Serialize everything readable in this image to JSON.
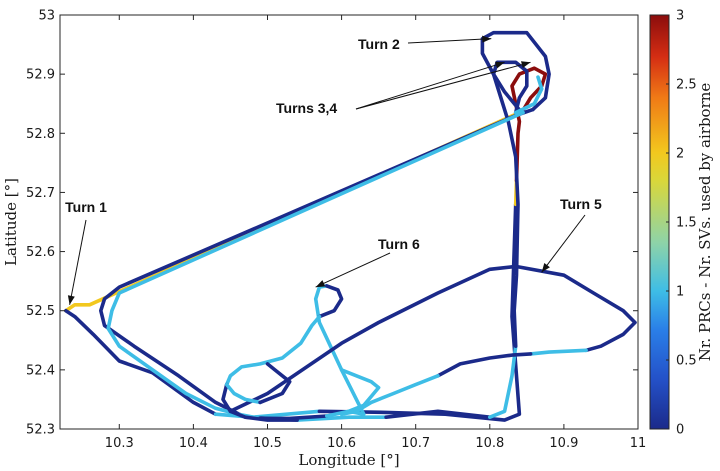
{
  "chart_data": {
    "type": "line",
    "xlabel": "Longitude [°]",
    "ylabel": "Latitude [°]",
    "colorbar_label": "Nr. PRCs - Nr. SVs. used by airborne",
    "xlim": [
      10.22,
      11.0
    ],
    "ylim": [
      52.3,
      53.0
    ],
    "x_ticks": [
      "10.3",
      "10.4",
      "10.5",
      "10.6",
      "10.7",
      "10.8",
      "10.9",
      "11"
    ],
    "y_ticks": [
      "52.3",
      "52.4",
      "52.5",
      "52.6",
      "52.7",
      "52.8",
      "52.9",
      "53"
    ],
    "colorbar_ticks": [
      "0",
      "0.5",
      "1",
      "1.5",
      "2",
      "2.5",
      "3"
    ],
    "colorbar_range": [
      0,
      3
    ],
    "colors": {
      "value_0": "#1b2a8a",
      "value_1": "#3ebde6",
      "value_2": "#f2c81e",
      "value_3": "#8b0d0d"
    },
    "grid": false,
    "annotations": [
      {
        "text": "Turn 1",
        "target": [
          10.233,
          52.51
        ]
      },
      {
        "text": "Turn 2",
        "target": [
          10.802,
          52.96
        ]
      },
      {
        "text": "Turns 3,4",
        "target": [
          10.855,
          52.92
        ]
      },
      {
        "text": "Turn 5",
        "target": [
          10.87,
          52.565
        ]
      },
      {
        "text": "Turn 6",
        "target": [
          10.565,
          52.54
        ]
      }
    ],
    "segments": [
      {
        "value": 2,
        "points": [
          [
            10.84,
            52.835
          ],
          [
            10.26,
            52.51
          ],
          [
            10.24,
            52.51
          ],
          [
            10.228,
            52.5
          ]
        ]
      },
      {
        "value": 0,
        "points": [
          [
            10.228,
            52.5
          ],
          [
            10.24,
            52.49
          ],
          [
            10.265,
            52.46
          ],
          [
            10.3,
            52.415
          ],
          [
            10.345,
            52.395
          ],
          [
            10.4,
            52.345
          ],
          [
            10.43,
            52.325
          ]
        ]
      },
      {
        "value": 1,
        "points": [
          [
            10.43,
            52.325
          ],
          [
            10.48,
            52.32
          ],
          [
            10.57,
            52.33
          ]
        ]
      },
      {
        "value": 0,
        "points": [
          [
            10.57,
            52.33
          ],
          [
            10.66,
            52.328
          ],
          [
            10.74,
            52.325
          ],
          [
            10.82,
            52.315
          ],
          [
            10.84,
            52.325
          ],
          [
            10.83,
            52.49
          ],
          [
            10.835,
            52.68
          ]
        ]
      },
      {
        "value": 2,
        "points": [
          [
            10.835,
            52.68
          ],
          [
            10.836,
            52.72
          ]
        ]
      },
      {
        "value": 3,
        "points": [
          [
            10.836,
            52.72
          ],
          [
            10.838,
            52.8
          ],
          [
            10.84,
            52.82
          ],
          [
            10.83,
            52.88
          ],
          [
            10.84,
            52.9
          ],
          [
            10.86,
            52.91
          ],
          [
            10.875,
            52.9
          ],
          [
            10.87,
            52.88
          ],
          [
            10.855,
            52.86
          ],
          [
            10.843,
            52.835
          ]
        ]
      },
      {
        "value": 0,
        "points": [
          [
            10.843,
            52.835
          ],
          [
            10.82,
            52.87
          ],
          [
            10.805,
            52.9
          ],
          [
            10.79,
            52.935
          ],
          [
            10.79,
            52.96
          ],
          [
            10.805,
            52.97
          ],
          [
            10.85,
            52.97
          ],
          [
            10.875,
            52.93
          ],
          [
            10.88,
            52.9
          ],
          [
            10.875,
            52.86
          ],
          [
            10.858,
            52.84
          ]
        ]
      },
      {
        "value": 0,
        "points": [
          [
            10.858,
            52.84
          ],
          [
            10.835,
            52.83
          ],
          [
            10.3,
            52.54
          ],
          [
            10.28,
            52.52
          ],
          [
            10.275,
            52.5
          ],
          [
            10.28,
            52.475
          ],
          [
            10.32,
            52.44
          ],
          [
            10.38,
            52.39
          ],
          [
            10.43,
            52.345
          ],
          [
            10.47,
            52.32
          ],
          [
            10.54,
            52.315
          ]
        ]
      },
      {
        "value": 1,
        "points": [
          [
            10.54,
            52.315
          ],
          [
            10.61,
            52.32
          ],
          [
            10.66,
            52.32
          ]
        ]
      },
      {
        "value": 0,
        "points": [
          [
            10.66,
            52.32
          ],
          [
            10.73,
            52.33
          ],
          [
            10.8,
            52.32
          ]
        ]
      },
      {
        "value": 1,
        "points": [
          [
            10.8,
            52.32
          ],
          [
            10.82,
            52.33
          ],
          [
            10.83,
            52.39
          ],
          [
            10.835,
            52.44
          ]
        ]
      },
      {
        "value": 0,
        "points": [
          [
            10.835,
            52.44
          ],
          [
            10.833,
            52.5
          ],
          [
            10.836,
            52.56
          ],
          [
            10.838,
            52.68
          ],
          [
            10.835,
            52.76
          ],
          [
            10.825,
            52.82
          ],
          [
            10.815,
            52.86
          ],
          [
            10.805,
            52.9
          ],
          [
            10.81,
            52.92
          ],
          [
            10.835,
            52.92
          ],
          [
            10.85,
            52.905
          ],
          [
            10.85,
            52.88
          ],
          [
            10.84,
            52.86
          ],
          [
            10.835,
            52.835
          ]
        ]
      },
      {
        "value": 1,
        "points": [
          [
            10.835,
            52.835
          ],
          [
            10.86,
            52.85
          ],
          [
            10.87,
            52.875
          ],
          [
            10.865,
            52.895
          ]
        ]
      },
      {
        "value": 1,
        "points": [
          [
            10.845,
            52.835
          ],
          [
            10.3,
            52.53
          ],
          [
            10.29,
            52.5
          ],
          [
            10.285,
            52.47
          ],
          [
            10.3,
            52.44
          ],
          [
            10.345,
            52.4
          ],
          [
            10.39,
            52.36
          ],
          [
            10.43,
            52.335
          ],
          [
            10.46,
            52.325
          ],
          [
            10.49,
            52.318
          ]
        ]
      },
      {
        "value": 0,
        "points": [
          [
            10.49,
            52.318
          ],
          [
            10.53,
            52.318
          ],
          [
            10.58,
            52.322
          ]
        ]
      },
      {
        "value": 1,
        "points": [
          [
            10.58,
            52.322
          ],
          [
            10.61,
            52.33
          ],
          [
            10.63,
            52.325
          ],
          [
            10.62,
            52.35
          ],
          [
            10.6,
            52.4
          ],
          [
            10.585,
            52.44
          ],
          [
            10.57,
            52.48
          ],
          [
            10.565,
            52.52
          ],
          [
            10.57,
            52.54
          ],
          [
            10.58,
            52.542
          ]
        ]
      },
      {
        "value": 0,
        "points": [
          [
            10.58,
            52.542
          ],
          [
            10.595,
            52.535
          ],
          [
            10.6,
            52.52
          ],
          [
            10.59,
            52.5
          ],
          [
            10.57,
            52.49
          ]
        ]
      },
      {
        "value": 1,
        "points": [
          [
            10.57,
            52.49
          ],
          [
            10.56,
            52.475
          ],
          [
            10.545,
            52.445
          ],
          [
            10.52,
            52.42
          ],
          [
            10.49,
            52.41
          ],
          [
            10.465,
            52.405
          ],
          [
            10.45,
            52.39
          ],
          [
            10.445,
            52.375
          ]
        ]
      },
      {
        "value": 0,
        "points": [
          [
            10.445,
            52.375
          ],
          [
            10.44,
            52.35
          ],
          [
            10.45,
            52.33
          ],
          [
            10.47,
            52.32
          ],
          [
            10.5,
            52.315
          ],
          [
            10.54,
            52.315
          ]
        ]
      },
      {
        "value": 0,
        "points": [
          [
            10.45,
            52.33
          ],
          [
            10.5,
            52.36
          ],
          [
            10.6,
            52.445
          ],
          [
            10.65,
            52.48
          ],
          [
            10.73,
            52.53
          ],
          [
            10.8,
            52.57
          ],
          [
            10.835,
            52.575
          ],
          [
            10.9,
            52.56
          ],
          [
            10.94,
            52.53
          ],
          [
            10.98,
            52.5
          ],
          [
            10.996,
            52.48
          ],
          [
            10.98,
            52.46
          ],
          [
            10.95,
            52.44
          ],
          [
            10.93,
            52.433
          ]
        ]
      },
      {
        "value": 1,
        "points": [
          [
            10.93,
            52.433
          ],
          [
            10.88,
            52.43
          ],
          [
            10.855,
            52.427
          ]
        ]
      },
      {
        "value": 0,
        "points": [
          [
            10.855,
            52.427
          ],
          [
            10.83,
            52.425
          ],
          [
            10.8,
            52.42
          ],
          [
            10.76,
            52.41
          ],
          [
            10.73,
            52.39
          ]
        ]
      },
      {
        "value": 1,
        "points": [
          [
            10.73,
            52.39
          ],
          [
            10.7,
            52.375
          ],
          [
            10.67,
            52.36
          ],
          [
            10.64,
            52.345
          ],
          [
            10.62,
            52.33
          ],
          [
            10.6,
            52.325
          ]
        ]
      },
      {
        "value": 1,
        "points": [
          [
            10.6,
            52.325
          ],
          [
            10.63,
            52.34
          ],
          [
            10.64,
            52.355
          ],
          [
            10.65,
            52.37
          ],
          [
            10.64,
            52.38
          ],
          [
            10.6,
            52.4
          ]
        ]
      },
      {
        "value": 1,
        "points": [
          [
            10.445,
            52.375
          ],
          [
            10.455,
            52.36
          ],
          [
            10.47,
            52.35
          ],
          [
            10.49,
            52.345
          ]
        ]
      },
      {
        "value": 0,
        "points": [
          [
            10.49,
            52.345
          ],
          [
            10.52,
            52.36
          ],
          [
            10.53,
            52.38
          ],
          [
            10.51,
            52.4
          ],
          [
            10.5,
            52.41
          ]
        ]
      }
    ]
  }
}
